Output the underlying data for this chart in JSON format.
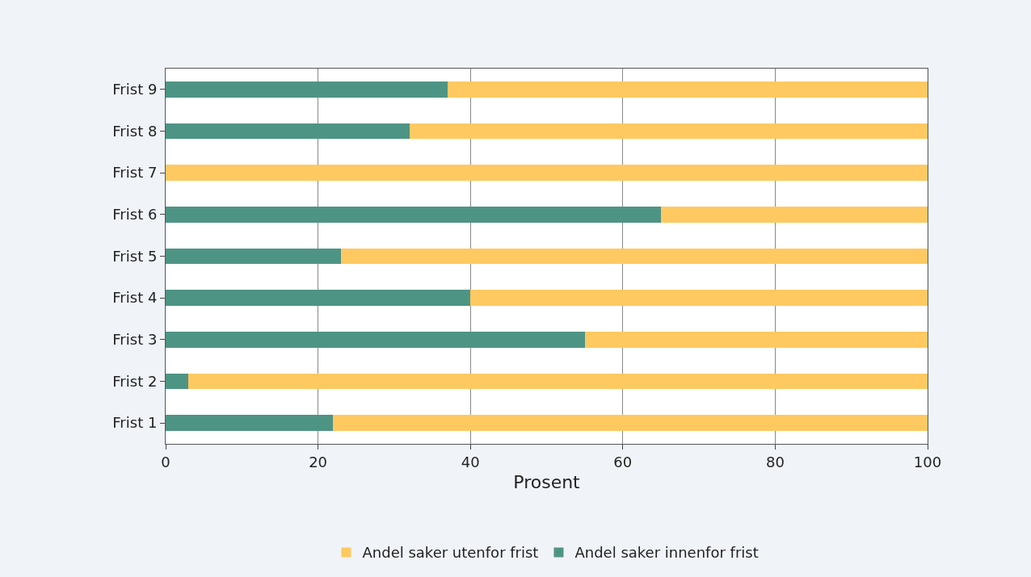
{
  "chart_data": {
    "type": "bar",
    "orientation": "horizontal",
    "stacked": true,
    "categories": [
      "Frist 9",
      "Frist 8",
      "Frist 7",
      "Frist 6",
      "Frist 5",
      "Frist 4",
      "Frist 3",
      "Frist 2",
      "Frist 1"
    ],
    "series": [
      {
        "name": "Andel saker innenfor frist",
        "color": "#4e9484",
        "values": [
          37,
          32,
          0,
          65,
          23,
          40,
          55,
          3,
          22
        ]
      },
      {
        "name": "Andel saker utenfor frist",
        "color": "#ffc961",
        "values": [
          63,
          68,
          100,
          35,
          77,
          60,
          45,
          97,
          78
        ]
      }
    ],
    "xlabel": "Prosent",
    "xlim": [
      0,
      100
    ],
    "xticks": [
      0,
      20,
      40,
      60,
      80,
      100
    ],
    "grid": "x",
    "legend": "bottom"
  }
}
